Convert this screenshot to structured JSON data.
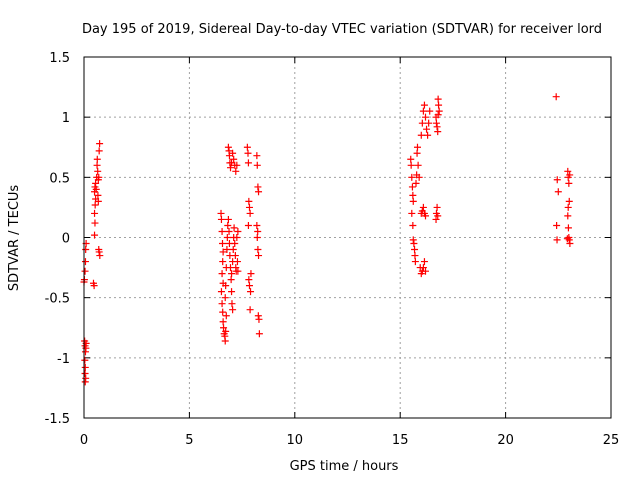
{
  "chart_data": {
    "type": "scatter",
    "title": "Day 195 of 2019, Sidereal Day-to-day VTEC variation (SDTVAR) for receiver lord",
    "xlabel": "GPS time / hours",
    "ylabel": "SDTVAR / TECUs",
    "xlim": [
      0,
      25
    ],
    "ylim": [
      -1.5,
      1.5
    ],
    "xticks": [
      0,
      5,
      10,
      15,
      20,
      25
    ],
    "xtick_labels": [
      "0",
      "5",
      "10",
      "15",
      "20",
      "25"
    ],
    "yticks": [
      -1.5,
      -1,
      -0.5,
      0,
      0.5,
      1,
      1.5
    ],
    "ytick_labels": [
      "-1.5",
      "-1",
      "-0.5",
      "0",
      "0.5",
      "1",
      "1.5"
    ],
    "grid": true,
    "marker": "+",
    "color": "#ff0000",
    "series": [
      {
        "name": "SDTVAR",
        "points": [
          [
            0.0,
            -0.37
          ],
          [
            0.02,
            -0.35
          ],
          [
            0.05,
            -0.28
          ],
          [
            0.07,
            -0.2
          ],
          [
            0.08,
            -0.1
          ],
          [
            0.1,
            -0.05
          ],
          [
            0.03,
            -0.86
          ],
          [
            0.05,
            -0.9
          ],
          [
            0.07,
            -0.95
          ],
          [
            0.09,
            -0.92
          ],
          [
            0.04,
            -1.02
          ],
          [
            0.06,
            -1.08
          ],
          [
            0.05,
            -1.13
          ],
          [
            0.08,
            -1.17
          ],
          [
            0.06,
            -1.2
          ],
          [
            0.1,
            -0.88
          ],
          [
            0.45,
            -0.38
          ],
          [
            0.48,
            -0.4
          ],
          [
            0.5,
            0.02
          ],
          [
            0.52,
            0.12
          ],
          [
            0.5,
            0.2
          ],
          [
            0.53,
            0.27
          ],
          [
            0.55,
            0.32
          ],
          [
            0.5,
            0.38
          ],
          [
            0.52,
            0.42
          ],
          [
            0.55,
            0.45
          ],
          [
            0.58,
            0.4
          ],
          [
            0.6,
            0.5
          ],
          [
            0.62,
            0.6
          ],
          [
            0.63,
            0.65
          ],
          [
            0.65,
            0.55
          ],
          [
            0.68,
            0.48
          ],
          [
            0.7,
            0.5
          ],
          [
            0.72,
            0.72
          ],
          [
            0.74,
            0.78
          ],
          [
            0.7,
            -0.1
          ],
          [
            0.72,
            -0.12
          ],
          [
            0.75,
            -0.15
          ],
          [
            0.68,
            0.3
          ],
          [
            0.66,
            0.35
          ],
          [
            6.5,
            0.2
          ],
          [
            6.52,
            0.15
          ],
          [
            6.55,
            0.05
          ],
          [
            6.57,
            -0.05
          ],
          [
            6.6,
            -0.12
          ],
          [
            6.58,
            -0.2
          ],
          [
            6.55,
            -0.3
          ],
          [
            6.6,
            -0.38
          ],
          [
            6.52,
            -0.45
          ],
          [
            6.55,
            -0.55
          ],
          [
            6.58,
            -0.62
          ],
          [
            6.6,
            -0.7
          ],
          [
            6.62,
            -0.75
          ],
          [
            6.65,
            -0.8
          ],
          [
            6.68,
            -0.82
          ],
          [
            6.7,
            -0.86
          ],
          [
            6.72,
            -0.78
          ],
          [
            6.75,
            -0.65
          ],
          [
            6.7,
            -0.5
          ],
          [
            6.72,
            -0.4
          ],
          [
            6.75,
            -0.25
          ],
          [
            6.78,
            -0.1
          ],
          [
            6.8,
            0.0
          ],
          [
            6.82,
            0.1
          ],
          [
            6.85,
            0.15
          ],
          [
            6.88,
            0.05
          ],
          [
            6.9,
            -0.05
          ],
          [
            6.92,
            -0.15
          ],
          [
            6.95,
            -0.25
          ],
          [
            6.98,
            -0.35
          ],
          [
            7.0,
            -0.45
          ],
          [
            7.02,
            -0.55
          ],
          [
            7.05,
            -0.6
          ],
          [
            7.0,
            -0.3
          ],
          [
            7.05,
            -0.2
          ],
          [
            7.08,
            -0.1
          ],
          [
            7.1,
            0.0
          ],
          [
            7.12,
            0.08
          ],
          [
            7.15,
            -0.05
          ],
          [
            7.18,
            -0.15
          ],
          [
            7.2,
            -0.25
          ],
          [
            6.85,
            0.75
          ],
          [
            6.88,
            0.72
          ],
          [
            6.9,
            0.68
          ],
          [
            6.92,
            0.62
          ],
          [
            6.95,
            0.58
          ],
          [
            7.0,
            0.62
          ],
          [
            7.05,
            0.7
          ],
          [
            7.1,
            0.65
          ],
          [
            7.15,
            0.6
          ],
          [
            7.2,
            0.55
          ],
          [
            7.25,
            0.6
          ],
          [
            7.3,
            -0.28
          ],
          [
            7.28,
            -0.2
          ],
          [
            7.25,
            0.0
          ],
          [
            7.3,
            0.05
          ],
          [
            7.22,
            -0.28
          ],
          [
            7.75,
            0.75
          ],
          [
            7.78,
            0.7
          ],
          [
            7.8,
            0.62
          ],
          [
            7.82,
            0.3
          ],
          [
            7.85,
            0.25
          ],
          [
            7.88,
            0.2
          ],
          [
            7.8,
            0.1
          ],
          [
            7.82,
            -0.35
          ],
          [
            7.85,
            -0.4
          ],
          [
            7.9,
            -0.45
          ],
          [
            7.88,
            -0.6
          ],
          [
            7.92,
            -0.3
          ],
          [
            8.2,
            0.68
          ],
          [
            8.22,
            0.6
          ],
          [
            8.25,
            0.42
          ],
          [
            8.28,
            0.38
          ],
          [
            8.2,
            0.1
          ],
          [
            8.22,
            0.0
          ],
          [
            8.25,
            -0.1
          ],
          [
            8.28,
            -0.15
          ],
          [
            8.3,
            -0.68
          ],
          [
            8.32,
            -0.8
          ],
          [
            8.27,
            -0.65
          ],
          [
            8.24,
            0.05
          ],
          [
            15.5,
            0.65
          ],
          [
            15.52,
            0.6
          ],
          [
            15.55,
            0.5
          ],
          [
            15.58,
            0.42
          ],
          [
            15.6,
            0.35
          ],
          [
            15.62,
            0.3
          ],
          [
            15.55,
            0.2
          ],
          [
            15.6,
            0.1
          ],
          [
            15.62,
            -0.02
          ],
          [
            15.65,
            -0.05
          ],
          [
            15.68,
            -0.1
          ],
          [
            15.7,
            -0.15
          ],
          [
            15.72,
            -0.2
          ],
          [
            15.75,
            0.45
          ],
          [
            15.78,
            0.52
          ],
          [
            15.8,
            0.7
          ],
          [
            15.82,
            0.75
          ],
          [
            15.85,
            0.6
          ],
          [
            15.9,
            0.5
          ],
          [
            15.95,
            -0.25
          ],
          [
            16.0,
            -0.3
          ],
          [
            16.05,
            -0.28
          ],
          [
            16.1,
            -0.25
          ],
          [
            16.15,
            -0.2
          ],
          [
            16.2,
            -0.28
          ],
          [
            16.0,
            0.2
          ],
          [
            16.05,
            0.22
          ],
          [
            16.1,
            0.25
          ],
          [
            16.15,
            0.2
          ],
          [
            16.2,
            0.18
          ],
          [
            16.0,
            0.85
          ],
          [
            16.05,
            0.95
          ],
          [
            16.1,
            1.05
          ],
          [
            16.15,
            1.1
          ],
          [
            16.2,
            1.0
          ],
          [
            16.25,
            0.9
          ],
          [
            16.3,
            0.85
          ],
          [
            16.35,
            0.95
          ],
          [
            16.4,
            1.05
          ],
          [
            16.7,
            0.15
          ],
          [
            16.72,
            0.2
          ],
          [
            16.75,
            0.25
          ],
          [
            16.78,
            0.18
          ],
          [
            16.8,
            1.15
          ],
          [
            16.82,
            1.1
          ],
          [
            16.85,
            1.05
          ],
          [
            16.7,
            1.0
          ],
          [
            16.72,
            0.95
          ],
          [
            16.75,
            0.92
          ],
          [
            16.78,
            0.88
          ],
          [
            16.8,
            1.02
          ],
          [
            22.4,
            1.17
          ],
          [
            22.45,
            0.48
          ],
          [
            22.5,
            0.38
          ],
          [
            22.42,
            0.1
          ],
          [
            22.44,
            -0.02
          ],
          [
            22.95,
            0.55
          ],
          [
            22.97,
            0.5
          ],
          [
            23.0,
            0.45
          ],
          [
            23.02,
            0.3
          ],
          [
            22.95,
            0.18
          ],
          [
            22.98,
            0.08
          ],
          [
            23.0,
            0.0
          ],
          [
            23.02,
            -0.02
          ],
          [
            23.05,
            -0.05
          ],
          [
            22.97,
            0.25
          ],
          [
            23.04,
            0.52
          ],
          [
            22.93,
            -0.01
          ]
        ]
      }
    ]
  }
}
